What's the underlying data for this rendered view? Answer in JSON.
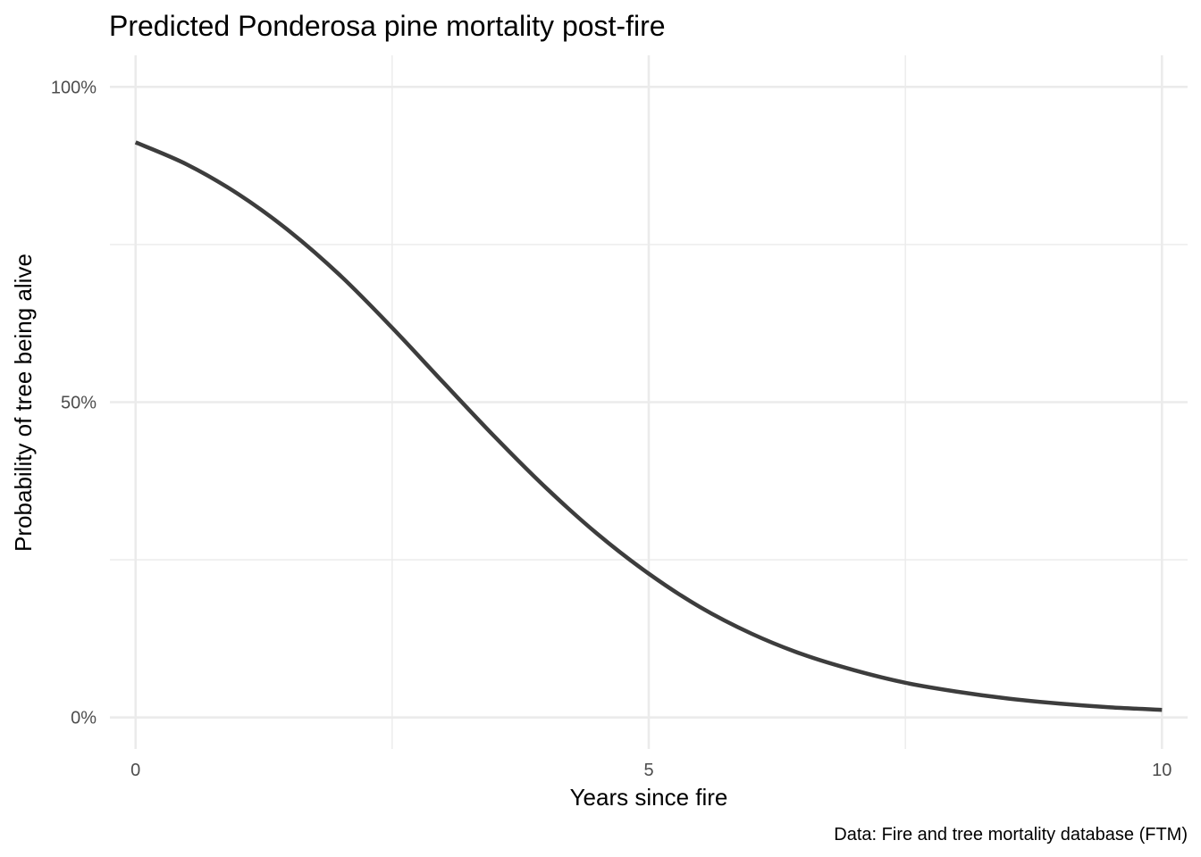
{
  "chart_data": {
    "type": "line",
    "title": "Predicted Ponderosa pine mortality post-fire",
    "xlabel": "Years since fire",
    "ylabel": "Probability of tree being alive",
    "caption": "Data: Fire and tree mortality database (FTM)",
    "xlim": [
      -0.25,
      10.25
    ],
    "ylim": [
      -0.05,
      1.05
    ],
    "x_ticks": [
      0,
      5,
      10
    ],
    "x_tick_labels": [
      "0",
      "5",
      "10"
    ],
    "y_ticks": [
      0,
      0.5,
      1
    ],
    "y_tick_labels": [
      "0%",
      "50%",
      "100%"
    ],
    "grid": true,
    "legend": "none",
    "series": [
      {
        "color": "#3d3d3d",
        "x": [
          0,
          0.5,
          1,
          1.5,
          2,
          2.5,
          3,
          3.5,
          4,
          4.5,
          5,
          5.5,
          6,
          6.5,
          7,
          7.5,
          8,
          8.5,
          9,
          9.5,
          10
        ],
        "y": [
          0.912,
          0.877,
          0.83,
          0.771,
          0.7,
          0.618,
          0.531,
          0.445,
          0.364,
          0.291,
          0.228,
          0.175,
          0.133,
          0.1,
          0.075,
          0.055,
          0.041,
          0.03,
          0.022,
          0.016,
          0.012
        ]
      }
    ]
  }
}
